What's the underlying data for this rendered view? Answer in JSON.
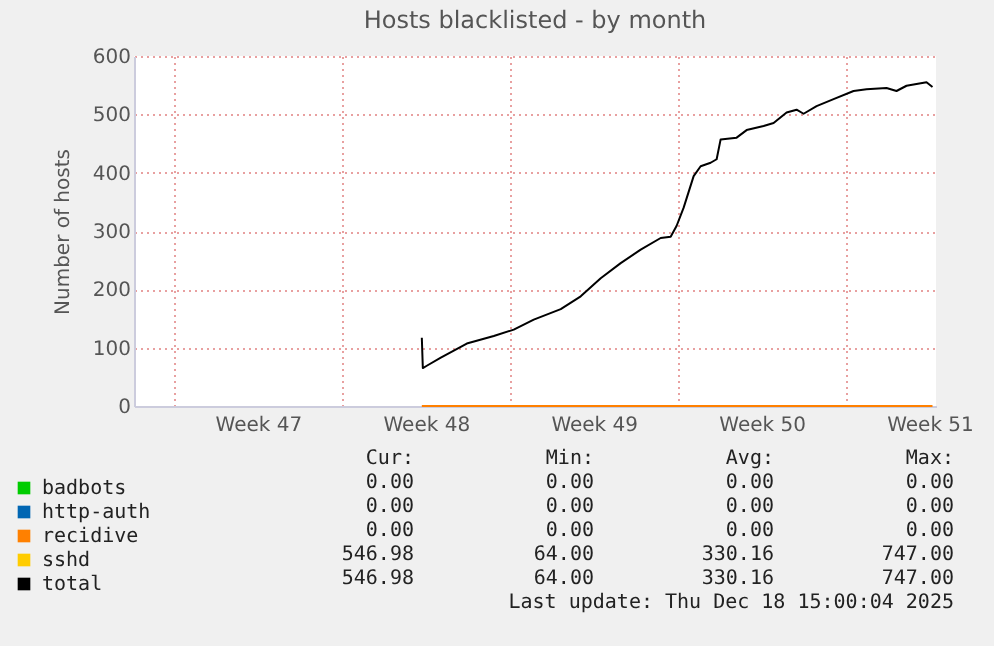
{
  "chart_data": {
    "type": "line",
    "title": "Hosts blacklisted - by month",
    "ylabel": "Number of hosts",
    "x": [
      "2025-11-27T08:00",
      "2025-11-27T09:00",
      "2025-11-27T13:00",
      "2025-11-28T03:00",
      "2025-11-29T05:00",
      "2025-11-30T08:00",
      "2025-12-01T04:00",
      "2025-12-02T00:00",
      "2025-12-03T03:00",
      "2025-12-03T23:00",
      "2025-12-04T19:00",
      "2025-12-05T15:00",
      "2025-12-06T11:00",
      "2025-12-07T07:00",
      "2025-12-07T17:00",
      "2025-12-07T23:00",
      "2025-12-08T06:00",
      "2025-12-08T16:00",
      "2025-12-08T23:00",
      "2025-12-09T09:00",
      "2025-12-09T15:00",
      "2025-12-09T19:00",
      "2025-12-10T11:00",
      "2025-12-10T21:00",
      "2025-12-11T14:00",
      "2025-12-12T00:00",
      "2025-12-12T13:00",
      "2025-12-12T23:00",
      "2025-12-13T06:00",
      "2025-12-13T19:00",
      "2025-12-14T12:00",
      "2025-12-15T08:00",
      "2025-12-15T21:00",
      "2025-12-16T17:00",
      "2025-12-17T03:00",
      "2025-12-17T13:00",
      "2025-12-18T09:00",
      "2025-12-18T15:00"
    ],
    "series": [
      {
        "name": "badbots",
        "color": "#00cc00",
        "values": [
          null,
          null,
          null,
          null,
          null,
          null,
          null,
          null,
          null,
          null,
          null,
          null,
          null,
          null,
          null,
          null,
          null,
          null,
          null,
          null,
          null,
          null,
          null,
          null,
          null,
          null,
          null,
          null,
          null,
          null,
          null,
          null,
          null,
          null,
          null,
          null,
          null,
          null
        ]
      },
      {
        "name": "http-auth",
        "color": "#0066b3",
        "values": [
          null,
          null,
          null,
          null,
          null,
          null,
          null,
          null,
          null,
          null,
          null,
          null,
          null,
          null,
          null,
          null,
          null,
          null,
          null,
          null,
          null,
          null,
          null,
          null,
          null,
          null,
          null,
          null,
          null,
          null,
          null,
          null,
          null,
          null,
          null,
          null,
          null,
          null
        ]
      },
      {
        "name": "recidive",
        "color": "#ff8000",
        "values": [
          0,
          0,
          0,
          0,
          0,
          0,
          0,
          0,
          0,
          0,
          0,
          0,
          0,
          0,
          0,
          0,
          0,
          0,
          0,
          0,
          0,
          0,
          0,
          0,
          0,
          0,
          0,
          0,
          0,
          0,
          0,
          0,
          0,
          0,
          0,
          0,
          0,
          0
        ]
      },
      {
        "name": "sshd",
        "color": "#ffcc00",
        "values": [
          null,
          null,
          null,
          null,
          null,
          null,
          null,
          null,
          null,
          null,
          null,
          null,
          null,
          null,
          null,
          null,
          null,
          null,
          null,
          null,
          null,
          null,
          null,
          null,
          null,
          null,
          null,
          null,
          null,
          null,
          null,
          null,
          null,
          null,
          null,
          null,
          null,
          null
        ]
      },
      {
        "name": "total",
        "color": "#000000",
        "values": [
          117,
          65,
          69,
          83,
          107,
          120,
          131,
          148,
          166,
          188,
          219,
          245,
          268,
          288,
          290,
          309,
          340,
          394,
          411,
          417,
          423,
          457,
          460,
          473,
          480,
          485,
          503,
          508,
          501,
          514,
          526,
          540,
          543,
          545,
          540,
          549,
          555,
          547
        ]
      }
    ],
    "xlim": [
      "2025-11-15T08:00",
      "2025-12-18T18:30"
    ],
    "xticks": [
      {
        "value": "2025-11-17T00:00",
        "label": null
      },
      {
        "value": "2025-11-20T12:00",
        "label": "Week 47"
      },
      {
        "value": "2025-11-24T00:00",
        "label": null
      },
      {
        "value": "2025-11-27T12:00",
        "label": "Week 48"
      },
      {
        "value": "2025-12-01T00:00",
        "label": null
      },
      {
        "value": "2025-12-04T12:00",
        "label": "Week 49"
      },
      {
        "value": "2025-12-08T00:00",
        "label": null
      },
      {
        "value": "2025-12-11T12:00",
        "label": "Week 50"
      },
      {
        "value": "2025-12-15T00:00",
        "label": null
      },
      {
        "value": "2025-12-18T12:00",
        "label": "Week 51"
      }
    ],
    "ylim": [
      0,
      600
    ],
    "yticks": [
      0,
      100,
      200,
      300,
      400,
      500,
      600
    ],
    "grid": true,
    "legend": "bottom left",
    "annotations": [
      "Cur:",
      "Min:",
      "Avg:",
      "Max:",
      "0.00",
      "0.00",
      "0.00",
      "0.00",
      "0.00",
      "0.00",
      "0.00",
      "0.00",
      "0.00",
      "0.00",
      "0.00",
      "0.00",
      "546.98",
      "64.00",
      "330.16",
      "747.00",
      "546.98",
      "64.00",
      "330.16",
      "747.00",
      "Last update: Thu Dec 18 15:00:04 2025"
    ]
  }
}
